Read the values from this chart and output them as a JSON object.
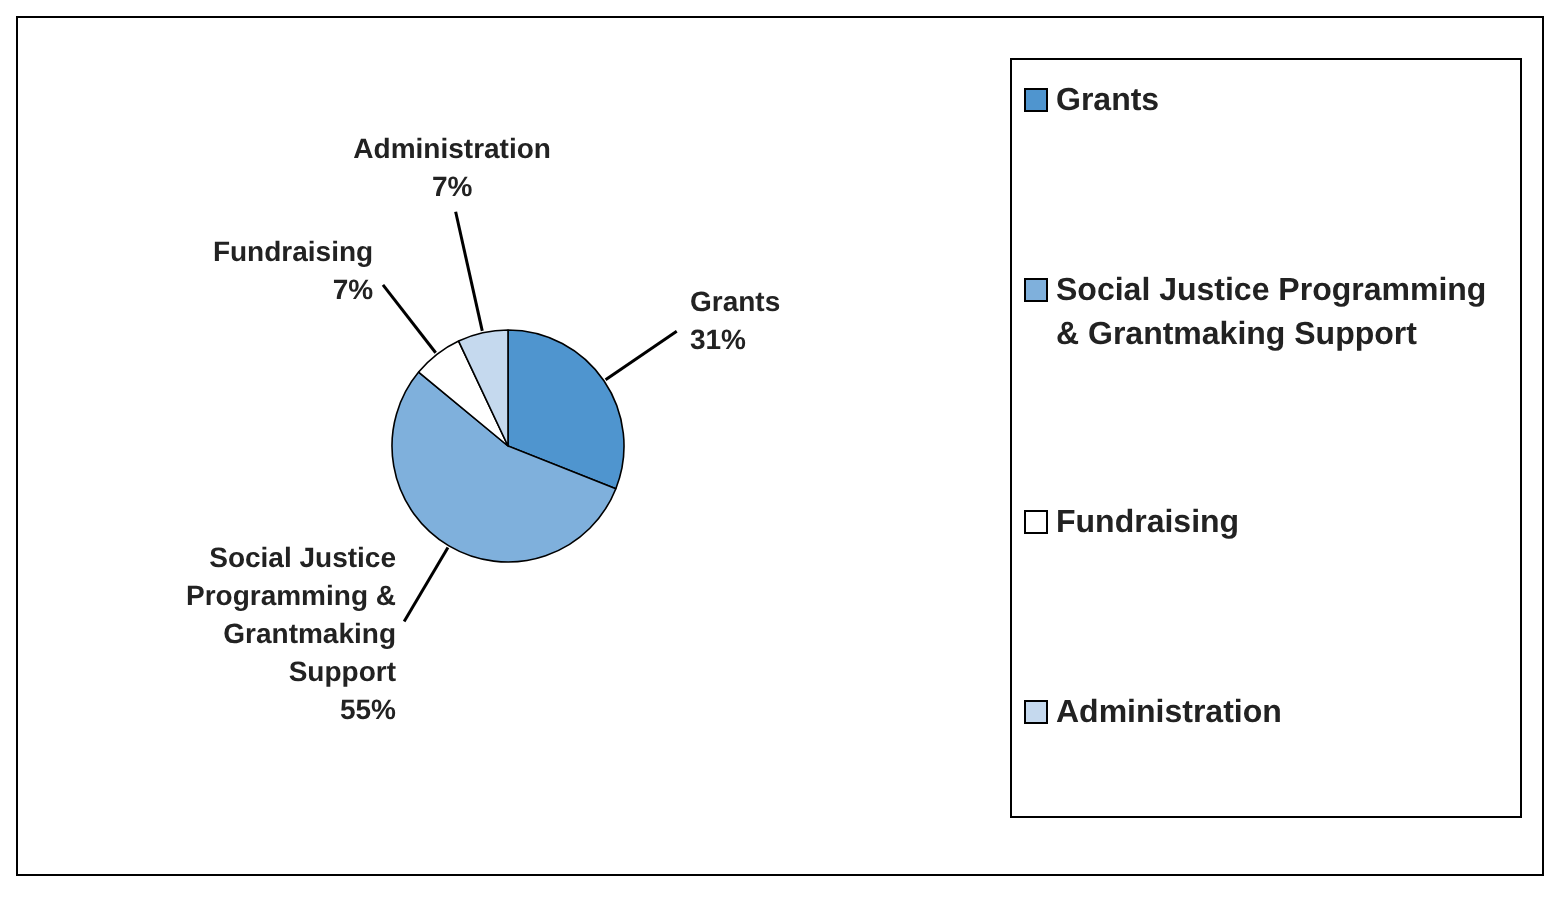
{
  "chart_data": {
    "type": "pie",
    "categories": [
      "Grants",
      "Social Justice Programming & Grantmaking Support",
      "Fundraising",
      "Administration"
    ],
    "values": [
      31,
      55,
      7,
      7
    ],
    "colors": [
      "#4f95cf",
      "#7fb0dc",
      "#ffffff",
      "#c5d9ee"
    ],
    "value_labels": [
      "31%",
      "55%",
      "7%",
      "7%"
    ],
    "legend": "right"
  }
}
